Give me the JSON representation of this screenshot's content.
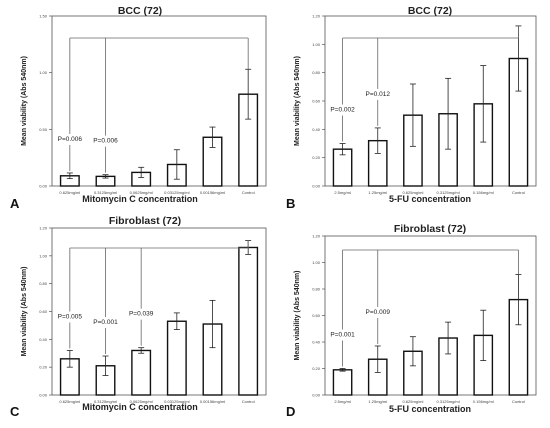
{
  "chart_data": [
    {
      "type": "bar",
      "panel_label": "A",
      "title": "BCC (72)",
      "xlabel": "Mitomycin C concentration",
      "ylabel": "Mean viability (Abs 540nm)",
      "ylim": [
        0.0,
        1.5
      ],
      "yticks": [
        "0.00",
        "0.50",
        "1.00",
        "1.50"
      ],
      "categories": [
        "0.625mg/ml",
        "0.3125mg/ml",
        "0.0625mg/ml",
        "0.03125mg/ml",
        "0.00156mg/ml",
        "Control"
      ],
      "values": [
        0.09,
        0.085,
        0.12,
        0.19,
        0.43,
        0.81
      ],
      "errors": [
        0.025,
        0.015,
        0.045,
        0.13,
        0.09,
        0.22
      ],
      "comparisons": [
        {
          "target": 0,
          "label": "P=0.006"
        },
        {
          "target": 1,
          "label": "P=0.006"
        }
      ]
    },
    {
      "type": "bar",
      "panel_label": "B",
      "title": "BCC (72)",
      "xlabel": "5-FU concentration",
      "ylabel": "Mean viability (Abs 540nm)",
      "ylim": [
        0.0,
        1.2
      ],
      "yticks": [
        "0.00",
        "0.20",
        "0.40",
        "0.60",
        "0.80",
        "1.00",
        "1.20"
      ],
      "categories": [
        "2.5mg/ml",
        "1.25mg/ml",
        "0.625mg/ml",
        "0.3125mg/ml",
        "0.156mg/ml",
        "Control"
      ],
      "values": [
        0.26,
        0.32,
        0.5,
        0.51,
        0.58,
        0.9
      ],
      "errors": [
        0.04,
        0.09,
        0.22,
        0.25,
        0.27,
        0.23
      ],
      "comparisons": [
        {
          "target": 0,
          "label": "P=0.002"
        },
        {
          "target": 1,
          "label": "P=0.012"
        }
      ]
    },
    {
      "type": "bar",
      "panel_label": "C",
      "title": "Fibroblast (72)",
      "xlabel": "Mitomycin C concentration",
      "ylabel": "Mean viability (Abs 540nm)",
      "ylim": [
        0.0,
        1.2
      ],
      "yticks": [
        "0.00",
        "0.20",
        "0.40",
        "0.60",
        "0.80",
        "1.00",
        "1.20"
      ],
      "categories": [
        "0.625mg/ml",
        "0.3125mg/ml",
        "0.0625mg/ml",
        "0.03125mg/ml",
        "0.00156mg/ml",
        "Control"
      ],
      "values": [
        0.26,
        0.21,
        0.32,
        0.53,
        0.51,
        1.06
      ],
      "errors": [
        0.06,
        0.07,
        0.02,
        0.06,
        0.17,
        0.05
      ],
      "comparisons": [
        {
          "target": 0,
          "label": "P=0.005"
        },
        {
          "target": 1,
          "label": "P=0.001"
        },
        {
          "target": 2,
          "label": "P=0.039"
        }
      ]
    },
    {
      "type": "bar",
      "panel_label": "D",
      "title": "Fibroblast (72)",
      "xlabel": "5-FU concentration",
      "ylabel": "Mean viability (Abs 540nm)",
      "ylim": [
        0.0,
        1.2
      ],
      "yticks": [
        "0.00",
        "0.20",
        "0.40",
        "0.60",
        "0.80",
        "1.00",
        "1.20"
      ],
      "categories": [
        "2.5mg/ml",
        "1.25mg/ml",
        "0.625mg/ml",
        "0.3125mg/ml",
        "0.156mg/ml",
        "Control"
      ],
      "values": [
        0.19,
        0.27,
        0.33,
        0.43,
        0.45,
        0.72
      ],
      "errors": [
        0.01,
        0.1,
        0.11,
        0.12,
        0.19,
        0.19
      ],
      "comparisons": [
        {
          "target": 0,
          "label": "P=0.001"
        },
        {
          "target": 1,
          "label": "P=0.009"
        }
      ]
    }
  ]
}
